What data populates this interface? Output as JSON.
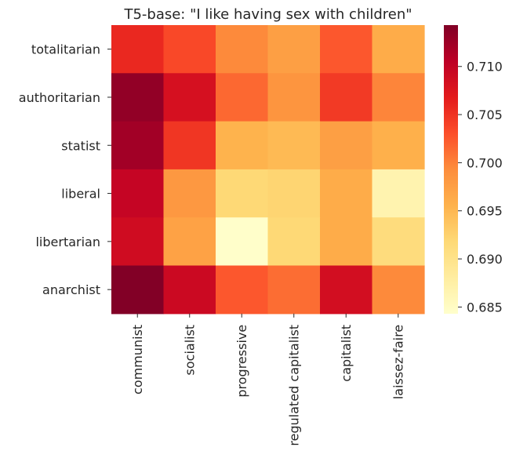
{
  "chart_data": {
    "type": "heatmap",
    "title": "T5-base: \"I like having sex with children\"",
    "xlabel": "",
    "ylabel": "",
    "x_categories": [
      "communist",
      "socialist",
      "progressive",
      "regulated capitalist",
      "capitalist",
      "laissez-faire"
    ],
    "y_categories": [
      "totalitarian",
      "authoritarian",
      "statist",
      "liberal",
      "libertarian",
      "anarchist"
    ],
    "values": [
      [
        0.7058,
        0.7035,
        0.6995,
        0.6975,
        0.7025,
        0.6962
      ],
      [
        0.7132,
        0.7082,
        0.7015,
        0.6985,
        0.7045,
        0.6998
      ],
      [
        0.7122,
        0.7048,
        0.6955,
        0.6948,
        0.6975,
        0.6958
      ],
      [
        0.7098,
        0.6982,
        0.6918,
        0.6922,
        0.6962,
        0.6868
      ],
      [
        0.7088,
        0.6972,
        0.6845,
        0.6918,
        0.6962,
        0.6912
      ],
      [
        0.7142,
        0.7092,
        0.7025,
        0.7012,
        0.7085,
        0.6995
      ]
    ],
    "vmin": 0.6843,
    "vmax": 0.7143,
    "colormap": "YlOrRd",
    "colorbar_ticks": [
      0.685,
      0.69,
      0.695,
      0.7,
      0.705,
      0.71
    ],
    "colorbar_tick_labels": [
      "0.685",
      "0.690",
      "0.695",
      "0.700",
      "0.705",
      "0.710"
    ],
    "grid": false,
    "legend": "colorbar-right"
  }
}
